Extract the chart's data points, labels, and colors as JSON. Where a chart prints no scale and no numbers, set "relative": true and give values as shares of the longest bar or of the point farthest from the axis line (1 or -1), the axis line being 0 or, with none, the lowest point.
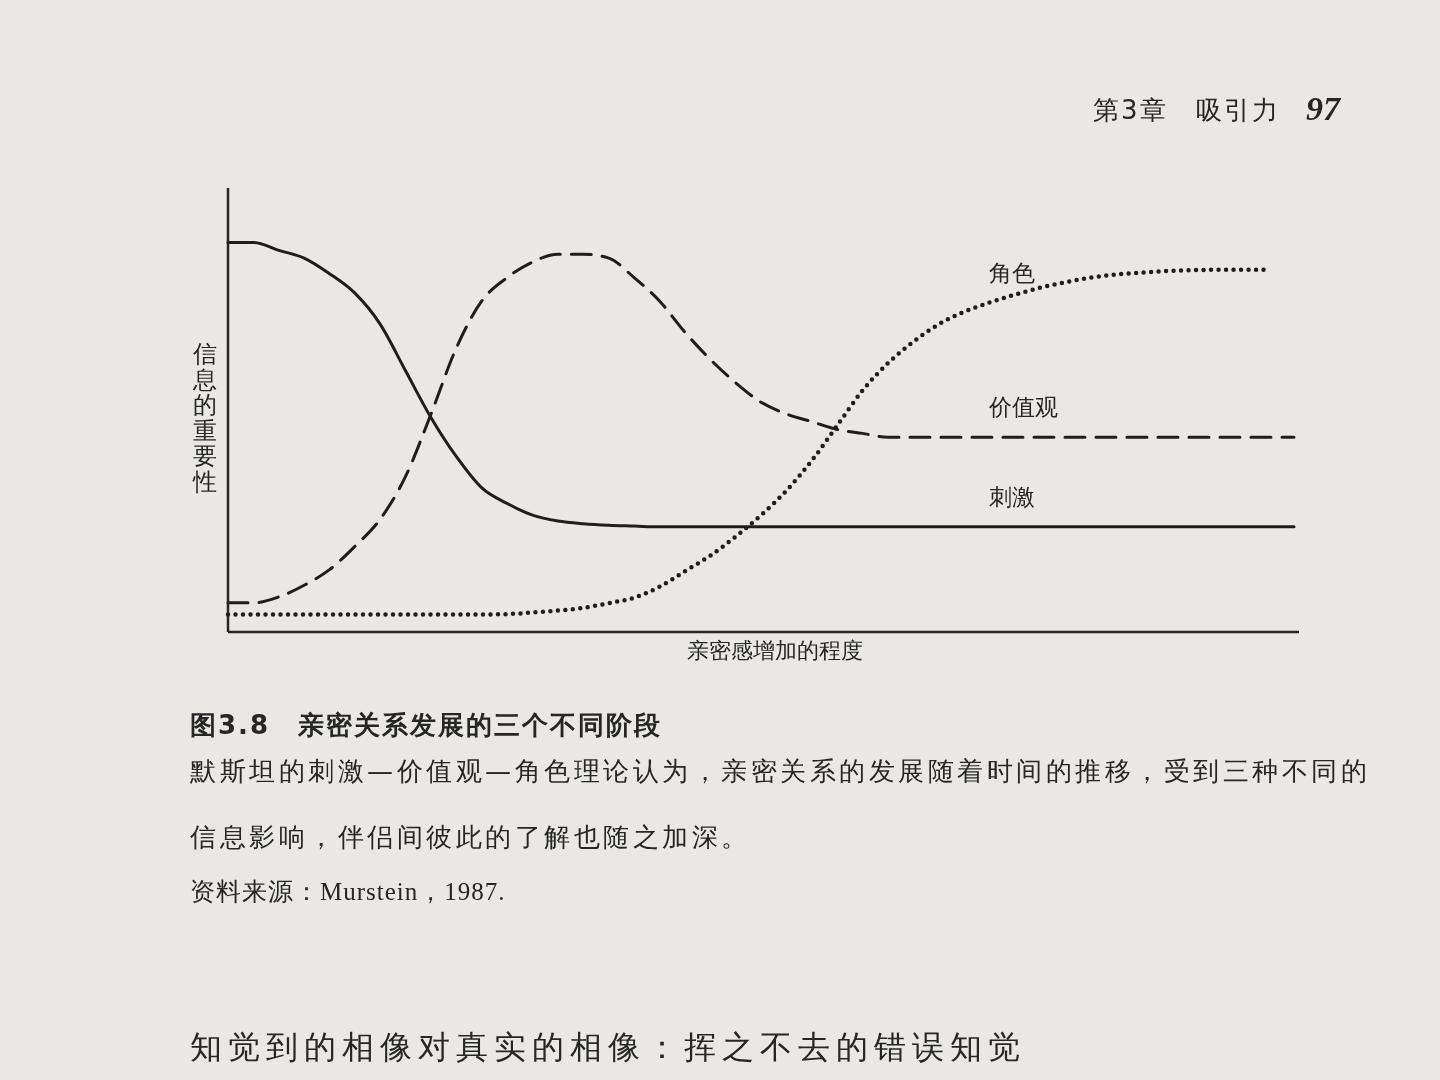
{
  "chart_data": {
    "type": "line",
    "relative": true,
    "title": "图3.8　亲密关系发展的三个不同阶段",
    "xlabel": "亲密感增加的程度",
    "ylabel": "信息的重要性",
    "annotations": [
      "默斯坦的刺激—价值观—角色理论认为，亲密关系的发展随着时间的推移，受到三种不同的信息影响，伴侣间彼此的了解也随之加深。",
      "资料来源：Murstein，1987.",
      "第3章　吸引力",
      "97",
      "知觉到的相像对真实的相像：挥之不去的错误知觉"
    ],
    "categories": [
      null,
      null,
      null,
      null,
      null,
      null,
      null,
      null,
      null,
      null,
      null,
      null,
      null,
      null,
      null,
      null,
      null,
      null,
      null,
      null,
      null,
      null,
      null,
      null,
      null,
      null,
      null,
      null,
      null,
      null,
      null,
      null,
      null,
      null,
      null,
      null,
      null,
      null,
      null,
      null,
      null,
      null,
      null
    ],
    "series": [
      {
        "name": "刺激",
        "color": "#1e1e1e",
        "line_style": "solid",
        "values": [
          1.0,
          1.0,
          0.98,
          0.96,
          0.92,
          0.87,
          0.79,
          0.67,
          0.55,
          0.45,
          0.37,
          0.33,
          0.3,
          0.285,
          0.278,
          0.274,
          0.272,
          0.27,
          0.27,
          0.27,
          0.27,
          0.27,
          0.27,
          0.27,
          0.27,
          0.27,
          0.27,
          0.27,
          0.27,
          0.27,
          0.27,
          0.27,
          0.27,
          0.27,
          0.27,
          0.27,
          0.27,
          0.27,
          0.27,
          0.27,
          0.27,
          0.27,
          0.27
        ]
      },
      {
        "name": "价值观",
        "color": "#1e1e1e",
        "line_style": "dashed",
        "values": [
          0.075,
          0.075,
          0.09,
          0.12,
          0.16,
          0.22,
          0.29,
          0.4,
          0.56,
          0.73,
          0.85,
          0.91,
          0.95,
          0.97,
          0.97,
          0.96,
          0.91,
          0.85,
          0.77,
          0.7,
          0.64,
          0.59,
          0.56,
          0.54,
          0.52,
          0.51,
          0.5,
          0.5,
          0.5,
          0.5,
          0.5,
          0.5,
          0.5,
          0.5,
          0.5,
          0.5,
          0.5,
          0.5,
          0.5,
          0.5,
          0.5,
          0.5,
          0.5
        ]
      },
      {
        "name": "角色",
        "color": "#1e1e1e",
        "line_style": "dotted",
        "values": [
          0.045,
          0.045,
          0.045,
          0.045,
          0.045,
          0.045,
          0.045,
          0.045,
          0.045,
          0.045,
          0.045,
          0.046,
          0.05,
          0.055,
          0.062,
          0.074,
          0.088,
          0.116,
          0.156,
          0.196,
          0.245,
          0.3,
          0.363,
          0.44,
          0.53,
          0.62,
          0.69,
          0.745,
          0.79,
          0.822,
          0.846,
          0.866,
          0.884,
          0.898,
          0.91,
          0.918,
          0.923,
          0.927,
          0.929,
          0.93,
          0.93,
          0.93,
          null
        ]
      }
    ]
  }
}
